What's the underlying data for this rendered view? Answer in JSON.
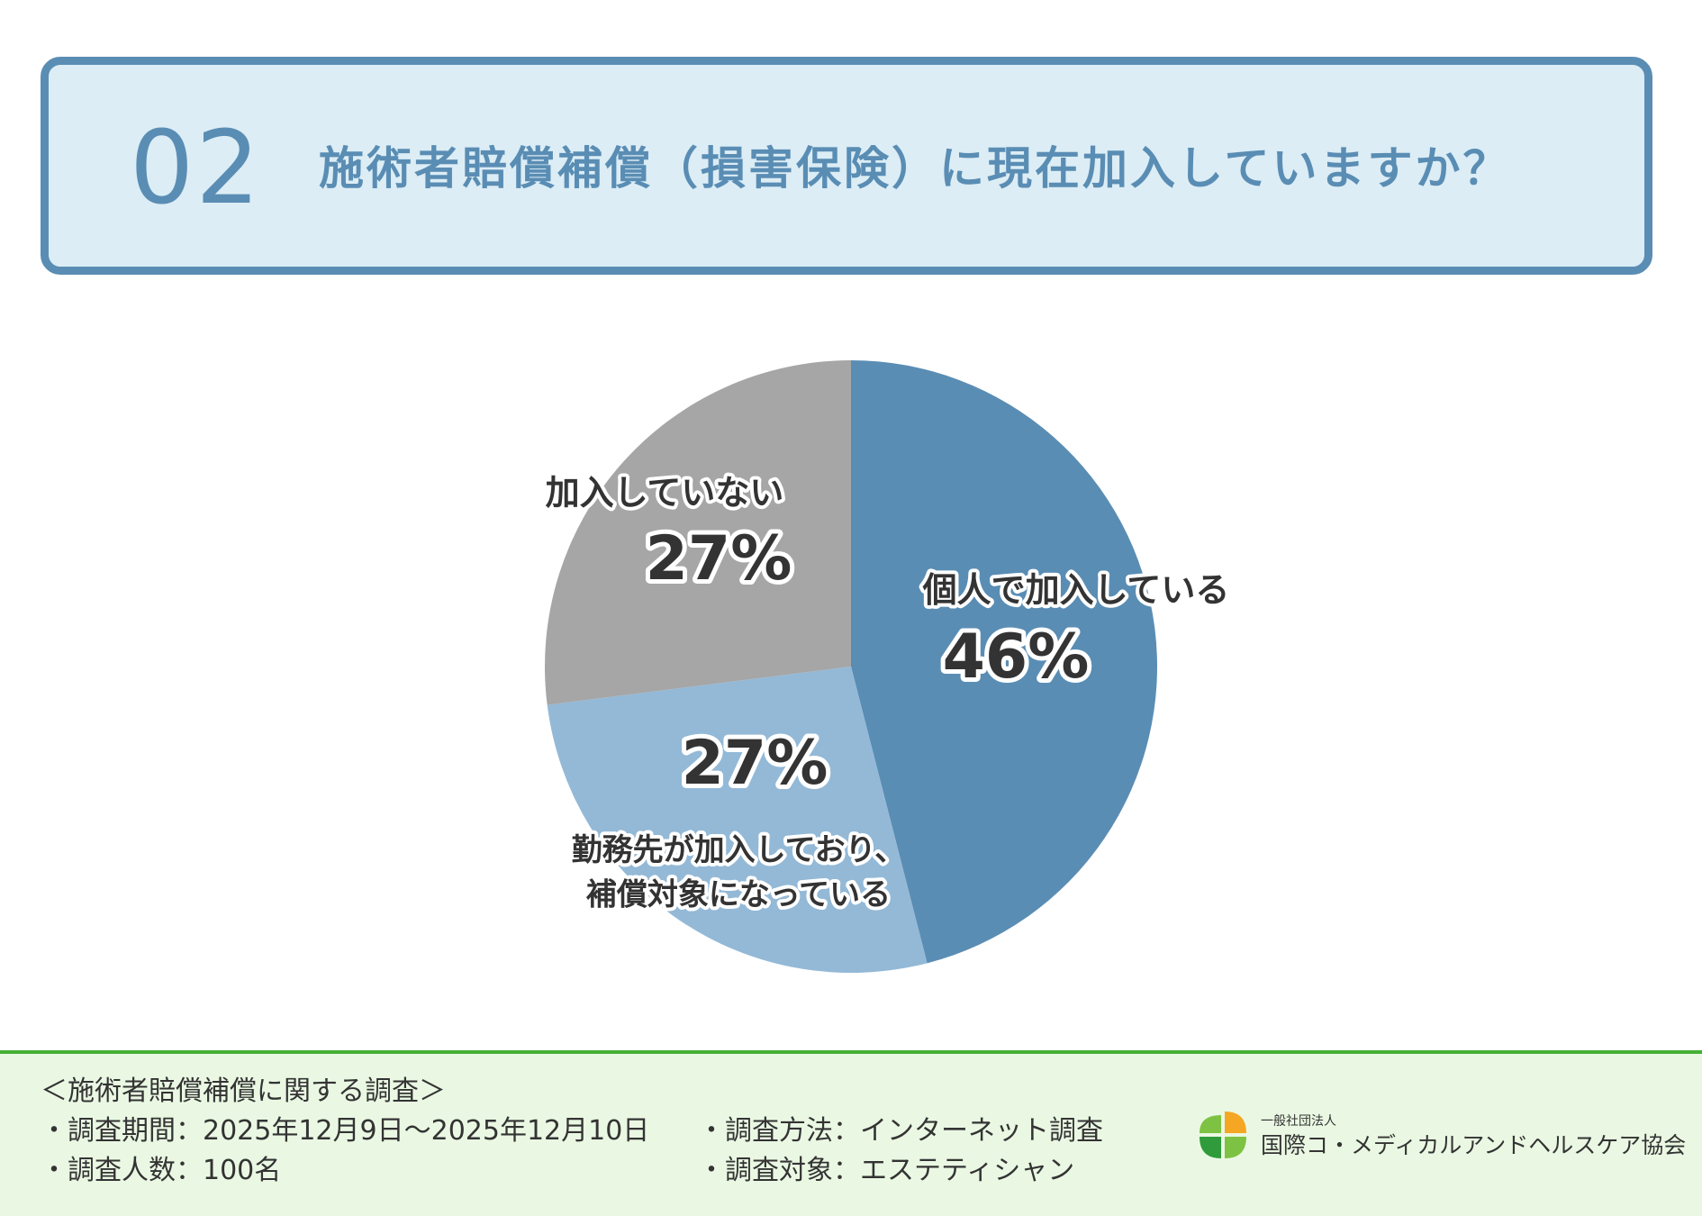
{
  "header": {
    "number": "02",
    "title": "施術者賠償補償（損害保険）に現在加入していますか？"
  },
  "chart_data": {
    "type": "pie",
    "categories": [
      "個人で加入している",
      "勤務先が加入しており、補償対象になっている",
      "加入していない"
    ],
    "values": [
      46,
      27,
      27
    ],
    "value_labels": [
      "46%",
      "27%",
      "27%"
    ],
    "label_lines": [
      [
        "個人で加入している"
      ],
      [
        "勤務先が加入しており、",
        "補償対象になっている"
      ],
      [
        "加入していない"
      ]
    ],
    "colors": [
      "#5a8db4",
      "#93b9d7",
      "#a6a6a6"
    ]
  },
  "footer": {
    "survey_title": "＜施術者賠償補償に関する調査＞",
    "period": "・調査期間：2025年12月9日～2025年12月10日",
    "method": "・調査方法：インターネット調査",
    "count": "・調査人数：100名",
    "target": "・調査対象：エステティシャン",
    "org_small": "一般社団法人",
    "org_name": "国際コ・メディカルアンドヘルスケア協会",
    "logo_colors": [
      "#f5a623",
      "#7dc242",
      "#2f9b3a",
      "#7dc242"
    ]
  }
}
